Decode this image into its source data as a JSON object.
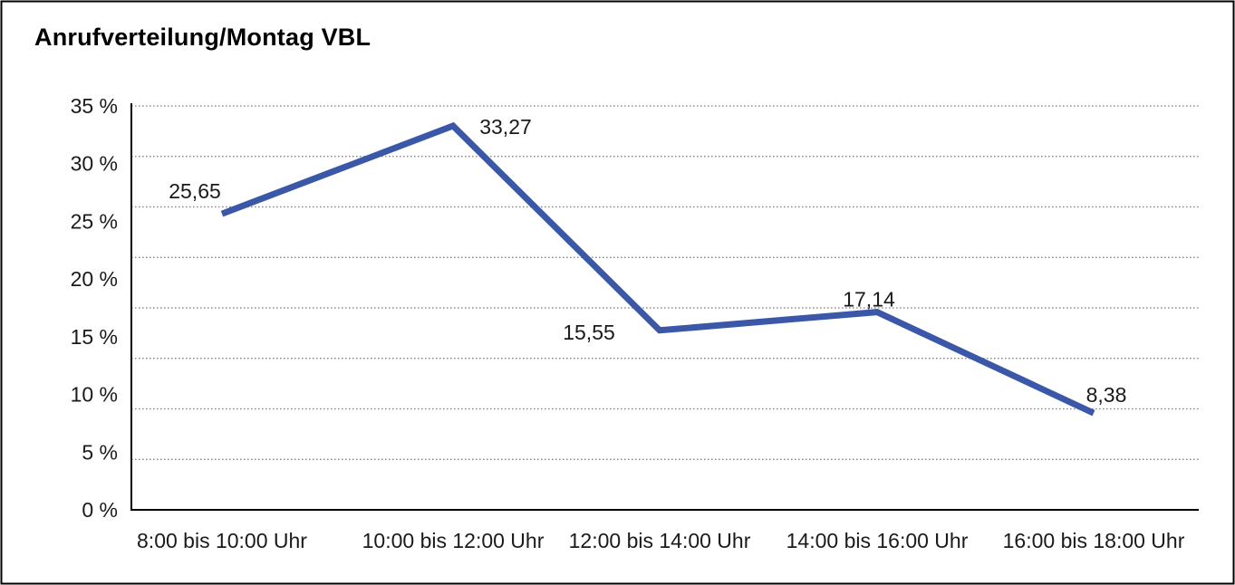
{
  "title": "Anrufverteilung/Montag VBL",
  "chart_data": {
    "type": "line",
    "title": "Anrufverteilung/Montag VBL",
    "categories": [
      "8:00 bis 10:00 Uhr",
      "10:00 bis 12:00 Uhr",
      "12:00 bis 14:00 Uhr",
      "14:00 bis 16:00 Uhr",
      "16:00 bis 18:00 Uhr"
    ],
    "values": [
      25.65,
      33.27,
      15.55,
      17.14,
      8.38
    ],
    "point_labels": [
      "25,65",
      "33,27",
      "15,55",
      "17,14",
      "8,38"
    ],
    "ytick_labels": [
      "35 %",
      "30 %",
      "25 %",
      "20 %",
      "15 %",
      "10 %",
      "5 %",
      "0 %"
    ],
    "ylim": [
      0,
      35
    ],
    "xlabel": "",
    "ylabel": "",
    "legend": "none",
    "grid": "horizontal-dotted"
  },
  "colors": {
    "line": "#3B57A8",
    "grid": "#808080",
    "axis": "#000000",
    "frame": "#000000",
    "background": "#ffffff",
    "text": "#1a1a1a"
  }
}
